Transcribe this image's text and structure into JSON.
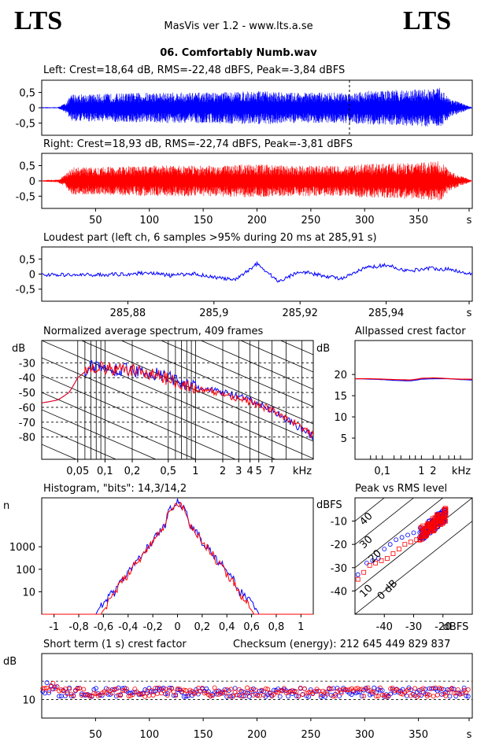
{
  "header": {
    "logo_left": "LTS",
    "logo_right": "LTS",
    "app": "MasVis ver 1.2 - www.lts.a.se",
    "file": "06. Comfortably Numb.wav"
  },
  "colors": {
    "left": "#0000ff",
    "right": "#ff0000"
  },
  "chart_data": [
    {
      "type": "area",
      "title": "Left: Crest=18,64 dB, RMS=-22,48 dBFS, Peak=-3,84 dBFS",
      "ylim": [
        -0.9,
        0.9
      ],
      "xlim": [
        0,
        400
      ],
      "yticks": [
        "0,5",
        "0",
        "-0,5"
      ],
      "marker_x": 285.91,
      "envelope": {
        "t": [
          0,
          15,
          22,
          28,
          50,
          100,
          150,
          200,
          230,
          250,
          285,
          300,
          350,
          370,
          380,
          400
        ],
        "amp": [
          0.02,
          0.02,
          0.15,
          0.45,
          0.45,
          0.5,
          0.5,
          0.55,
          0.5,
          0.5,
          0.5,
          0.55,
          0.6,
          0.65,
          0.3,
          0.01
        ]
      }
    },
    {
      "type": "area",
      "title": "Right: Crest=18,93 dB, RMS=-22,74 dBFS, Peak=-3,81 dBFS",
      "ylim": [
        -0.9,
        0.9
      ],
      "xlim": [
        0,
        400
      ],
      "yticks": [
        "0,5",
        "0",
        "-0,5"
      ],
      "xticks": [
        "50",
        "100",
        "150",
        "200",
        "250",
        "300",
        "350",
        "s"
      ],
      "envelope": {
        "t": [
          0,
          15,
          22,
          28,
          50,
          100,
          150,
          200,
          230,
          250,
          285,
          300,
          350,
          370,
          380,
          400
        ],
        "amp": [
          0.02,
          0.05,
          0.2,
          0.45,
          0.45,
          0.5,
          0.5,
          0.55,
          0.5,
          0.5,
          0.5,
          0.55,
          0.6,
          0.65,
          0.3,
          0.01
        ]
      }
    },
    {
      "type": "line",
      "title": "Loudest part (left  ch, 6 samples >95% during 20 ms at 285,91 s)",
      "ylim": [
        -0.9,
        0.9
      ],
      "xlim": [
        285.86,
        285.96
      ],
      "yticks": [
        "0,5",
        "0",
        "-0,5"
      ],
      "xticks": [
        "285,88",
        "285,9",
        "285,92",
        "285,94",
        "s"
      ],
      "x": [
        285.86,
        285.87,
        285.88,
        285.885,
        285.89,
        285.895,
        285.9,
        285.905,
        285.91,
        285.915,
        285.92,
        285.925,
        285.93,
        285.935,
        285.94,
        285.945,
        285.95,
        285.955,
        285.96
      ],
      "y": [
        -0.02,
        -0.03,
        0.0,
        0.05,
        -0.05,
        0.02,
        -0.1,
        -0.2,
        0.35,
        -0.25,
        0.1,
        -0.05,
        -0.15,
        0.2,
        0.3,
        0.1,
        0.2,
        0.15,
        0.0
      ]
    },
    {
      "type": "line",
      "title": "Normalized average spectrum, 409 frames",
      "ylabel": "dB",
      "xlabel": "kHz",
      "xscale": "log",
      "xlim": [
        0.02,
        20
      ],
      "ylim": [
        -95,
        -15
      ],
      "yticks": [
        -30,
        -40,
        -50,
        -60,
        -70,
        -80
      ],
      "xticks": [
        "0,05",
        "0,1",
        "0,2",
        "0,5",
        "1",
        "2",
        "3",
        "4",
        "5",
        "7",
        "kHz"
      ],
      "series": [
        {
          "x": [
            0.02,
            0.03,
            0.04,
            0.05,
            0.07,
            0.1,
            0.2,
            0.5,
            1,
            2,
            3,
            5,
            7,
            10,
            15,
            20
          ],
          "y": [
            -57,
            -55,
            -50,
            -40,
            -32,
            -34,
            -35,
            -40,
            -47,
            -50,
            -53,
            -58,
            -62,
            -68,
            -75,
            -80
          ]
        },
        {
          "x": [
            0.02,
            0.03,
            0.04,
            0.05,
            0.07,
            0.1,
            0.2,
            0.5,
            1,
            2,
            3,
            5,
            7,
            10,
            15,
            20
          ],
          "y": [
            -57,
            -55,
            -50,
            -40,
            -32,
            -34,
            -35,
            -41,
            -48,
            -51,
            -54,
            -59,
            -62,
            -67,
            -74,
            -79
          ]
        }
      ]
    },
    {
      "type": "line",
      "title": "Allpassed crest factor",
      "ylabel": "dB",
      "xlabel": "kHz",
      "xscale": "log",
      "xlim": [
        0.02,
        20
      ],
      "ylim": [
        0,
        28
      ],
      "yticks": [
        20,
        15,
        10,
        5
      ],
      "xticks": [
        "0,1",
        "1",
        "2",
        "kHz"
      ],
      "series": [
        {
          "x": [
            0.02,
            0.05,
            0.1,
            0.2,
            0.5,
            1,
            2,
            5,
            10,
            20
          ],
          "y": [
            19,
            18.9,
            18.8,
            18.6,
            18.5,
            18.9,
            19,
            19,
            18.8,
            18.7
          ]
        },
        {
          "x": [
            0.02,
            0.05,
            0.1,
            0.2,
            0.5,
            1,
            2,
            5,
            10,
            20
          ],
          "y": [
            19,
            19,
            18.9,
            18.8,
            18.7,
            19.1,
            19.2,
            19,
            18.9,
            18.9
          ]
        }
      ]
    },
    {
      "type": "line",
      "title": "Histogram, \"bits\": 14,3/14,2",
      "ylabel": "n",
      "yscale": "log",
      "xlim": [
        -1.1,
        1.1
      ],
      "ylim": [
        1,
        150000
      ],
      "yticks": [
        "1000",
        "100",
        "10"
      ],
      "xticks": [
        "-1",
        "-0,8",
        "-0,6",
        "-0,4",
        "-0,2",
        "0",
        "0,2",
        "0,4",
        "0,6",
        "0,8",
        "1"
      ],
      "series": [
        {
          "x": [
            -0.66,
            -0.6,
            -0.5,
            -0.4,
            -0.3,
            -0.2,
            -0.1,
            0,
            0.1,
            0.2,
            0.3,
            0.4,
            0.5,
            0.6,
            0.66
          ],
          "y": [
            1,
            3,
            10,
            60,
            300,
            1500,
            8000,
            100000,
            8000,
            1500,
            300,
            60,
            10,
            3,
            1
          ]
        },
        {
          "x": [
            -0.62,
            -0.58,
            -0.5,
            -0.4,
            -0.3,
            -0.2,
            -0.1,
            0,
            0.1,
            0.2,
            0.3,
            0.4,
            0.5,
            0.58,
            0.62
          ],
          "y": [
            1,
            2,
            8,
            50,
            280,
            1400,
            7500,
            90000,
            7500,
            1400,
            280,
            50,
            8,
            2,
            1
          ]
        }
      ]
    },
    {
      "type": "scatter",
      "title": "Peak vs RMS level",
      "ylabel": "dBFS",
      "xlabel": "dBFS",
      "xlim": [
        -50,
        -10
      ],
      "ylim": [
        -50,
        0
      ],
      "yticks": [
        -10,
        -20,
        -30,
        -40
      ],
      "xticks": [
        "-40",
        "-30",
        "-20",
        "dBFS"
      ],
      "line_labels": [
        "40",
        "30",
        "20",
        "10",
        "0 dB"
      ],
      "series": [
        {
          "x": [
            -49,
            -46,
            -44,
            -42,
            -40,
            -38,
            -36,
            -34,
            -32,
            -30,
            -28,
            -27,
            -26,
            -25,
            -24,
            -23,
            -22,
            -21,
            -20,
            -19
          ],
          "y": [
            -33,
            -28,
            -27,
            -26,
            -22,
            -20,
            -18,
            -17,
            -16,
            -15,
            -17,
            -14,
            -13,
            -12,
            -11,
            -10,
            -9,
            -8,
            -7,
            -6
          ]
        },
        {
          "x": [
            -49,
            -47,
            -45,
            -43,
            -41,
            -39,
            -37,
            -35,
            -33,
            -31,
            -29,
            -27,
            -26,
            -25,
            -24,
            -23,
            -22,
            -21,
            -20,
            -19
          ],
          "y": [
            -35,
            -32,
            -29,
            -28,
            -27,
            -26,
            -24,
            -22,
            -20,
            -19,
            -18,
            -16,
            -15,
            -14,
            -13,
            -12,
            -10,
            -9,
            -8,
            -7
          ]
        }
      ]
    },
    {
      "type": "scatter",
      "title": "Short term (1 s) crest factor",
      "ylabel": "dB",
      "checksum": "Checksum (energy):   212 645 449 829 837",
      "xlim": [
        0,
        400
      ],
      "ylim": [
        0,
        35
      ],
      "yticks": [
        "10"
      ],
      "xticks": [
        "50",
        "100",
        "150",
        "200",
        "250",
        "300",
        "350",
        "s"
      ],
      "level_mean": 14,
      "level_spread": 2.5
    }
  ]
}
